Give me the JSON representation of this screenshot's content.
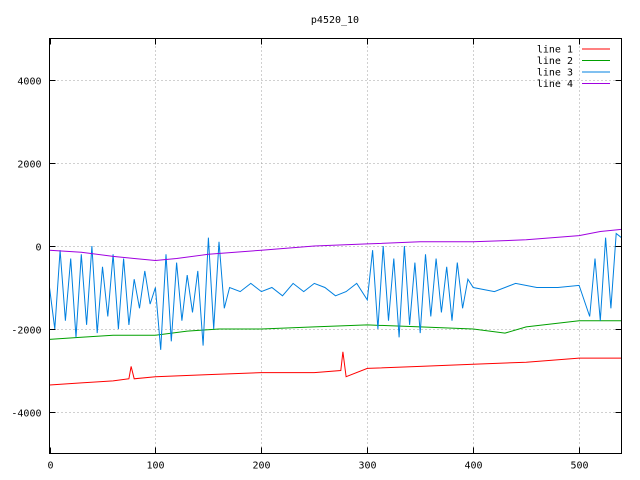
{
  "chart_data": {
    "type": "line",
    "title": "p4520_10",
    "xlabel": "",
    "ylabel": "",
    "xlim": [
      0,
      540
    ],
    "ylim": [
      -5000,
      5000
    ],
    "xticks": [
      0,
      100,
      200,
      300,
      400,
      500
    ],
    "yticks": [
      -4000,
      -2000,
      0,
      2000,
      4000
    ],
    "grid": true,
    "legend_position": "top-right",
    "series": [
      {
        "name": "line 1",
        "color": "#ff0000",
        "x": [
          0,
          30,
          60,
          75,
          77,
          80,
          100,
          150,
          200,
          250,
          275,
          277,
          280,
          300,
          350,
          400,
          450,
          500,
          540
        ],
        "y": [
          -3350,
          -3300,
          -3250,
          -3200,
          -2900,
          -3200,
          -3150,
          -3100,
          -3050,
          -3050,
          -3000,
          -2550,
          -3150,
          -2950,
          -2900,
          -2850,
          -2800,
          -2700,
          -2700
        ]
      },
      {
        "name": "line 2",
        "color": "#00a000",
        "x": [
          0,
          30,
          60,
          100,
          130,
          160,
          200,
          250,
          300,
          350,
          400,
          430,
          450,
          500,
          540
        ],
        "y": [
          -2250,
          -2200,
          -2150,
          -2150,
          -2050,
          -2000,
          -2000,
          -1950,
          -1900,
          -1950,
          -2000,
          -2100,
          -1950,
          -1800,
          -1800
        ]
      },
      {
        "name": "line 3",
        "color": "#0080e0",
        "x": [
          0,
          5,
          10,
          15,
          20,
          25,
          30,
          35,
          40,
          45,
          50,
          55,
          60,
          65,
          70,
          75,
          80,
          85,
          90,
          95,
          100,
          105,
          110,
          115,
          120,
          125,
          130,
          135,
          140,
          145,
          150,
          155,
          160,
          165,
          170,
          180,
          190,
          200,
          210,
          220,
          230,
          240,
          250,
          260,
          270,
          280,
          290,
          300,
          305,
          310,
          315,
          320,
          325,
          330,
          335,
          340,
          345,
          350,
          355,
          360,
          365,
          370,
          375,
          380,
          385,
          390,
          395,
          400,
          420,
          440,
          460,
          480,
          500,
          510,
          515,
          520,
          525,
          530,
          535,
          540
        ],
        "y": [
          -1000,
          -2000,
          -100,
          -1800,
          -300,
          -2200,
          -200,
          -1900,
          0,
          -2100,
          -500,
          -1700,
          -200,
          -2000,
          -300,
          -1900,
          -800,
          -1500,
          -600,
          -1400,
          -1000,
          -2500,
          -200,
          -2300,
          -400,
          -1800,
          -700,
          -1600,
          -600,
          -2400,
          200,
          -2000,
          100,
          -1500,
          -1000,
          -1100,
          -900,
          -1100,
          -1000,
          -1200,
          -900,
          -1100,
          -900,
          -1000,
          -1200,
          -1100,
          -900,
          -1300,
          -100,
          -2000,
          0,
          -1800,
          -300,
          -2200,
          0,
          -1900,
          -400,
          -2100,
          -200,
          -1700,
          -300,
          -1600,
          -500,
          -1800,
          -400,
          -1500,
          -800,
          -1000,
          -1100,
          -900,
          -1000,
          -1000,
          -950,
          -1700,
          -300,
          -1800,
          200,
          -1500,
          300,
          200
        ]
      },
      {
        "name": "line 4",
        "color": "#a000e0",
        "x": [
          0,
          30,
          60,
          80,
          100,
          120,
          150,
          200,
          250,
          300,
          350,
          400,
          450,
          500,
          520,
          540
        ],
        "y": [
          -100,
          -150,
          -250,
          -300,
          -350,
          -300,
          -200,
          -100,
          0,
          50,
          100,
          100,
          150,
          250,
          350,
          400
        ]
      }
    ]
  }
}
